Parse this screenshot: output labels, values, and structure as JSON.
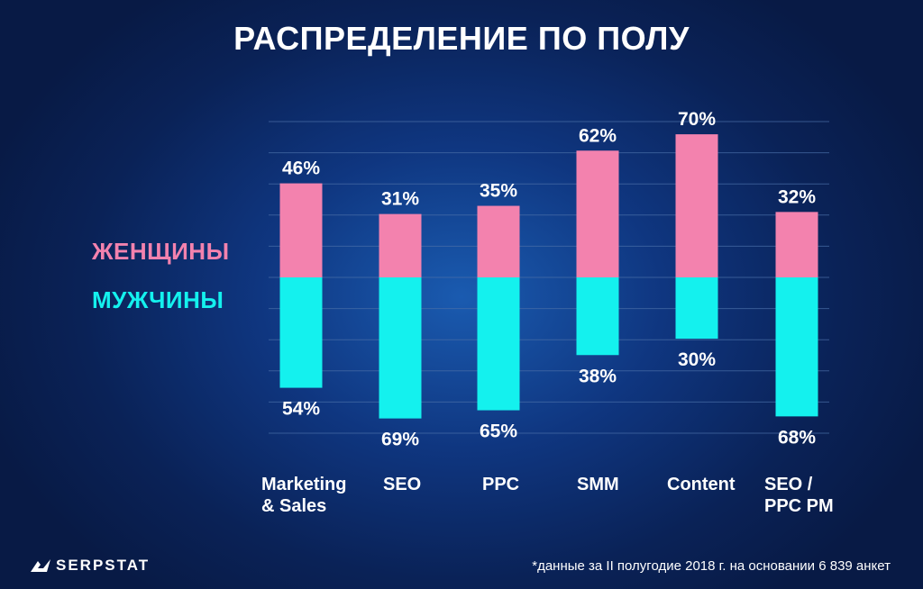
{
  "title": "РАСПРЕДЕЛЕНИЕ ПО ПОЛУ",
  "colors": {
    "women": "#f382ae",
    "men": "#14f1ee",
    "grid": "#4a6fa8"
  },
  "chart_data": {
    "type": "bar",
    "stacked": "diverging",
    "categories": [
      "Marketing\n& Sales",
      "SEO",
      "PPC",
      "SMM",
      "Content",
      "SEO /\nPPC PM"
    ],
    "series": [
      {
        "name": "ЖЕНЩИНЫ",
        "values": [
          46,
          31,
          35,
          62,
          70,
          32
        ],
        "labels": [
          "46%",
          "31%",
          "35%",
          "62%",
          "70%",
          "32%"
        ]
      },
      {
        "name": "МУЖЧИНЫ",
        "values": [
          54,
          69,
          65,
          38,
          30,
          68
        ],
        "labels": [
          "54%",
          "69%",
          "65%",
          "38%",
          "30%",
          "68%"
        ]
      }
    ],
    "unit": "%",
    "grid": true,
    "legend": "left"
  },
  "logo": {
    "text": "SERPSTAT",
    "icon": "serpstat-logo-icon"
  },
  "footnote": "*данные за II полугодие 2018 г. на основании 6 839 анкет"
}
